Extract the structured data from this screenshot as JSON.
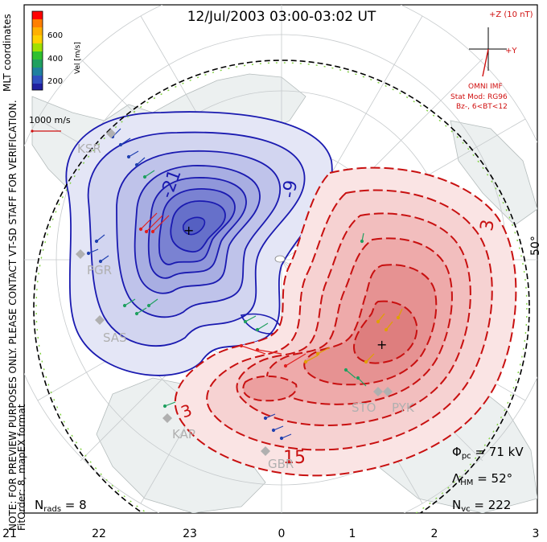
{
  "title": "12/Jul/2003 03:00-03:02 UT",
  "side_notes": {
    "line1": "NOTE: FOR PREVIEW PURPOSES ONLY. PLEASE CONTACT VT-SD STAFF FOR VERIFICATION.",
    "line2": "FitOrder: 8, mapEX format",
    "top": "MLT coordinates"
  },
  "color_scale": {
    "label": "Vel [m/s]",
    "ticks": [
      "600",
      "400",
      "200"
    ],
    "colors": [
      "#ff0000",
      "#ff7f00",
      "#ffd000",
      "#a0e000",
      "#30c030",
      "#20a060",
      "#2080a0",
      "#3050c0",
      "#2020a0"
    ]
  },
  "reference_vector": {
    "label": "1000 m/s"
  },
  "imf": {
    "top_label": "+Z (10 nT)",
    "right_label": "+Y",
    "caption": "OMNI IMF",
    "stat_mod": "Stat Mod: RG96",
    "condition": "Bz-, 6<BT<12"
  },
  "mlt_ticks": [
    "21",
    "22",
    "23",
    "0",
    "1",
    "2",
    "3"
  ],
  "lat_label": "50°",
  "stations": [
    {
      "code": "KSR"
    },
    {
      "code": "PGR"
    },
    {
      "code": "SAS"
    },
    {
      "code": "KAP"
    },
    {
      "code": "GBR"
    },
    {
      "code": "STO"
    },
    {
      "code": "PYK"
    }
  ],
  "contour_labels": {
    "neg1": "-21",
    "neg2": "-9",
    "pos1": "3",
    "pos2": "15",
    "pos3": "3"
  },
  "stats": {
    "phi_pc": "71 kV",
    "lambda_hm": "52°",
    "n_vc": "222",
    "n_rads": "8"
  },
  "colors": {
    "negative_line": "#1010b0",
    "positive_line": "#c81010",
    "hmb_dash": "#80d040"
  }
}
